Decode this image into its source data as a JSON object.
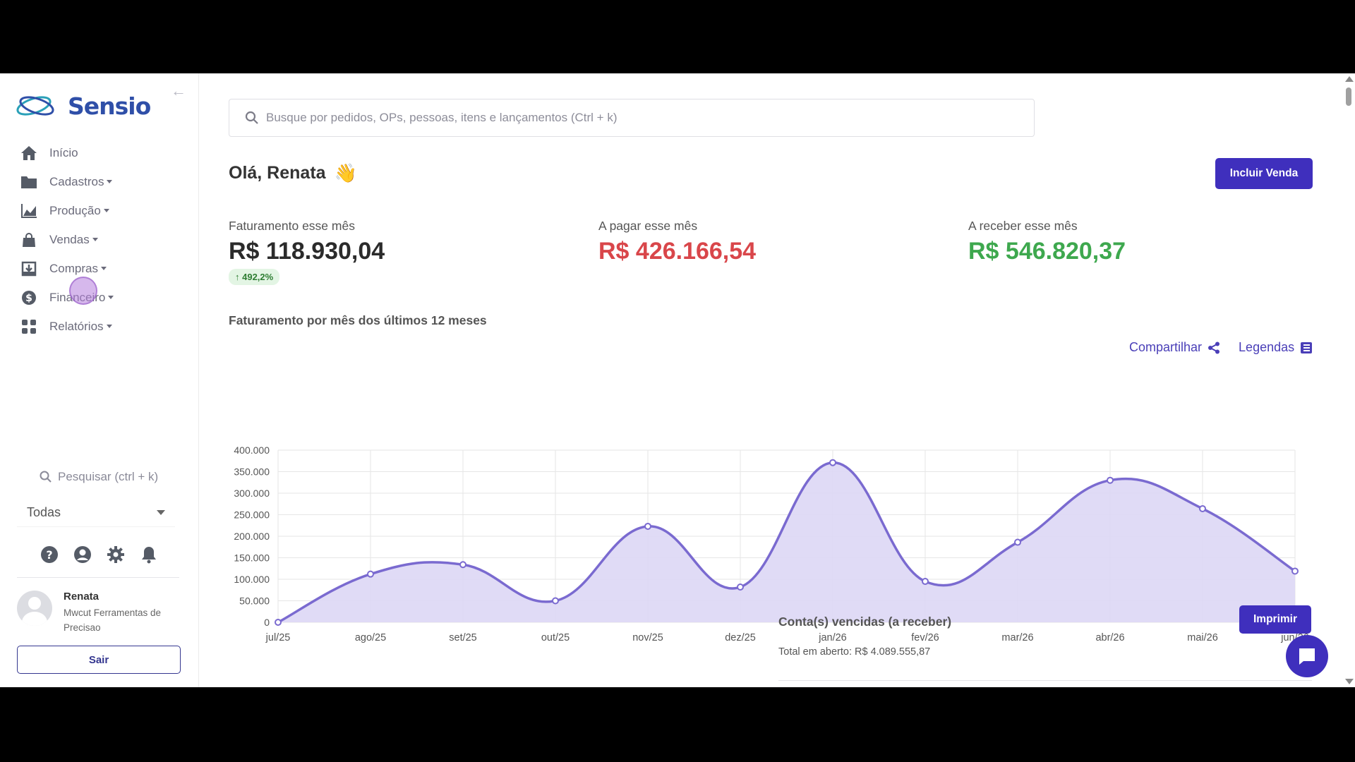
{
  "brand": {
    "name": "Sensio"
  },
  "sidebar": {
    "items": [
      {
        "label": "Início",
        "icon": "home-icon",
        "has_caret": false
      },
      {
        "label": "Cadastros",
        "icon": "folder-icon",
        "has_caret": true
      },
      {
        "label": "Produção",
        "icon": "chart-area-icon",
        "has_caret": true
      },
      {
        "label": "Vendas",
        "icon": "shopping-bag-icon",
        "has_caret": true
      },
      {
        "label": "Compras",
        "icon": "download-box-icon",
        "has_caret": true
      },
      {
        "label": "Financeiro",
        "icon": "dollar-circle-icon",
        "has_caret": true
      },
      {
        "label": "Relatórios",
        "icon": "grid-icon",
        "has_caret": true
      }
    ],
    "search_placeholder": "Pesquisar (ctrl + k)",
    "company_select": "Todas",
    "user": {
      "name": "Renata",
      "company": "Mwcut Ferramentas de Precisao"
    },
    "logout_label": "Sair"
  },
  "header": {
    "search_placeholder": "Busque por pedidos, OPs, pessoas, itens e lançamentos (Ctrl + k)",
    "greeting": "Olá, Renata",
    "greeting_emoji": "👋",
    "new_sale_label": "Incluir Venda"
  },
  "stats": {
    "revenue": {
      "label": "Faturamento esse mês",
      "value": "R$ 118.930,04",
      "badge": "↑ 492,2%"
    },
    "payable": {
      "label": "A pagar esse mês",
      "value": "R$ 426.166,54"
    },
    "receivable": {
      "label": "A receber esse mês",
      "value": "R$ 546.820,37"
    }
  },
  "chart_section": {
    "title": "Faturamento por mês dos últimos 12 meses",
    "share_label": "Compartilhar",
    "legend_label": "Legendas"
  },
  "chart_data": {
    "type": "area",
    "categories": [
      "jul/25",
      "ago/25",
      "set/25",
      "out/25",
      "nov/25",
      "dez/25",
      "jan/26",
      "fev/26",
      "mar/26",
      "abr/26",
      "mai/26",
      "jun/26"
    ],
    "series": [
      {
        "values": [
          0,
          112000,
          134000,
          50000,
          223000,
          82000,
          371000,
          95000,
          186000,
          330000,
          264000,
          118930
        ]
      }
    ],
    "y_ticks": [
      "0",
      "50.000",
      "100.000",
      "150.000",
      "200.000",
      "250.000",
      "300.000",
      "350.000",
      "400.000"
    ],
    "ylim": [
      0,
      400000
    ],
    "grid": true,
    "colors": {
      "line": "#7a6ad0",
      "fill": "#ddd7f5",
      "grid": "#e6e6e6"
    }
  },
  "overdue": {
    "title": "Conta(s) vencidas (a receber)",
    "total": "Total em aberto: R$ 4.089.555,87",
    "print_label": "Imprimir"
  },
  "colors": {
    "primary": "#3f2fbd",
    "negative": "#d9464a",
    "positive": "#3ea84e"
  }
}
